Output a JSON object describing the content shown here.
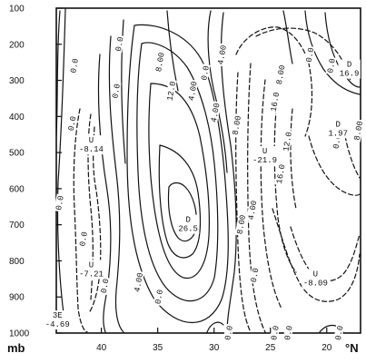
{
  "chart_data": {
    "type": "contour",
    "title": "",
    "xlabel": "°N",
    "ylabel": "mb",
    "x_axis": {
      "ticks": [
        40,
        35,
        30,
        25,
        20
      ],
      "tick_labels": [
        "40",
        "35",
        "30",
        "25",
        "20"
      ],
      "reversed": true,
      "range": [
        44,
        17
      ]
    },
    "y_axis": {
      "ticks": [
        100,
        200,
        300,
        400,
        500,
        600,
        700,
        800,
        900,
        1000
      ],
      "tick_labels": [
        "100",
        "200",
        "300",
        "400",
        "500",
        "600",
        "700",
        "800",
        "900",
        "1000"
      ],
      "inverted": true,
      "range": [
        100,
        1000
      ]
    },
    "grid": false,
    "line_styles": {
      "positive": "solid",
      "negative": "dashed"
    },
    "contour_interval": 4,
    "contour_labels": [
      {
        "text": "0.0",
        "lat": 43.6,
        "p": 640
      },
      {
        "text": "0.0",
        "lat": 42.5,
        "p": 420
      },
      {
        "text": "0.0",
        "lat": 42.3,
        "p": 260
      },
      {
        "text": "0.0",
        "lat": 38.3,
        "p": 200
      },
      {
        "text": "0.0",
        "lat": 38.6,
        "p": 330
      },
      {
        "text": "0.0",
        "lat": 41.5,
        "p": 740
      },
      {
        "text": "0.0",
        "lat": 39.6,
        "p": 870
      },
      {
        "text": "4.00",
        "lat": 36.6,
        "p": 860
      },
      {
        "text": "0.0",
        "lat": 34.8,
        "p": 900
      },
      {
        "text": "8.00",
        "lat": 34.7,
        "p": 250
      },
      {
        "text": "12.0",
        "lat": 33.7,
        "p": 330
      },
      {
        "text": "4.00",
        "lat": 31.8,
        "p": 330
      },
      {
        "text": "0.0",
        "lat": 30.7,
        "p": 280
      },
      {
        "text": "4.00",
        "lat": 29.8,
        "p": 390
      },
      {
        "text": "8.00",
        "lat": 27.9,
        "p": 425
      },
      {
        "text": "8.00",
        "lat": 27.5,
        "p": 700
      },
      {
        "text": "4.00",
        "lat": 26.5,
        "p": 660
      },
      {
        "text": "0.0",
        "lat": 26.3,
        "p": 840
      },
      {
        "text": "0.0",
        "lat": 28.6,
        "p": 1000
      },
      {
        "text": "4.00",
        "lat": 29.2,
        "p": 230
      },
      {
        "text": "8.00",
        "lat": 24.0,
        "p": 285
      },
      {
        "text": "16.0",
        "lat": 24.5,
        "p": 360
      },
      {
        "text": "16.0",
        "lat": 24.0,
        "p": 560
      },
      {
        "text": "12.0",
        "lat": 23.4,
        "p": 470
      },
      {
        "text": "0.0",
        "lat": 21.4,
        "p": 230
      },
      {
        "text": "0.0",
        "lat": 19.5,
        "p": 260
      },
      {
        "text": "0.0",
        "lat": 19.0,
        "p": 470
      },
      {
        "text": "8.00",
        "lat": 17.1,
        "p": 440
      },
      {
        "text": "0.0",
        "lat": 24.5,
        "p": 1000
      },
      {
        "text": "0.0",
        "lat": 23.3,
        "p": 1000
      },
      {
        "text": "0.0",
        "lat": 18.8,
        "p": 1000
      }
    ],
    "extrema": [
      {
        "marker": "U",
        "value": "-8.14",
        "lat": 40.9,
        "p": 475
      },
      {
        "marker": "U",
        "value": "-7.21",
        "lat": 40.9,
        "p": 820
      },
      {
        "marker": "3E",
        "value": "-4.69",
        "lat": 43.9,
        "p": 960
      },
      {
        "marker": "D",
        "value": "26.5",
        "lat": 32.3,
        "p": 695
      },
      {
        "marker": "U",
        "value": "-21.9",
        "lat": 25.5,
        "p": 505
      },
      {
        "marker": "D",
        "value": "1.97",
        "lat": 19.0,
        "p": 430
      },
      {
        "marker": "U",
        "value": "-8.09",
        "lat": 21.0,
        "p": 845
      },
      {
        "marker": "D",
        "value": "16.9",
        "lat": 18.0,
        "p": 265
      }
    ]
  }
}
